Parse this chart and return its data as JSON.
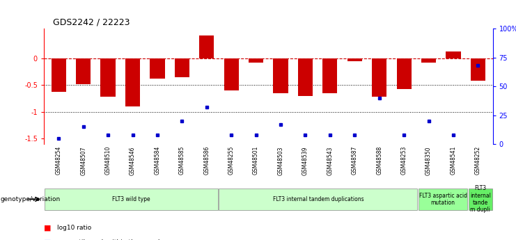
{
  "title": "GDS2242 / 22223",
  "samples": [
    "GSM48254",
    "GSM48507",
    "GSM48510",
    "GSM48546",
    "GSM48584",
    "GSM48585",
    "GSM48586",
    "GSM48255",
    "GSM48501",
    "GSM48503",
    "GSM48539",
    "GSM48543",
    "GSM48587",
    "GSM48588",
    "GSM48253",
    "GSM48350",
    "GSM48541",
    "GSM48252"
  ],
  "log10_ratio": [
    -0.62,
    -0.48,
    -0.72,
    -0.9,
    -0.38,
    -0.35,
    0.42,
    -0.6,
    -0.08,
    -0.65,
    -0.7,
    -0.65,
    -0.05,
    -0.72,
    -0.58,
    -0.08,
    0.13,
    -0.42
  ],
  "percentile_rank": [
    5,
    15,
    8,
    8,
    8,
    20,
    32,
    8,
    8,
    17,
    8,
    8,
    8,
    40,
    8,
    20,
    8,
    68
  ],
  "groups": [
    {
      "label": "FLT3 wild type",
      "start": 0,
      "end": 7,
      "color": "#ccffcc"
    },
    {
      "label": "FLT3 internal tandem duplications",
      "start": 7,
      "end": 15,
      "color": "#ccffcc"
    },
    {
      "label": "FLT3 aspartic acid\nmutation",
      "start": 15,
      "end": 17,
      "color": "#99ff99"
    },
    {
      "label": "FLT3\ninternal\ntande\nm dupli",
      "start": 17,
      "end": 18,
      "color": "#66ee66"
    }
  ],
  "bar_color": "#cc0000",
  "dot_color": "#0000cc",
  "dashed_line_color": "#cc0000",
  "ylim_left": [
    -1.6,
    0.55
  ],
  "ylim_right": [
    0,
    100
  ],
  "ylabel_right_ticks": [
    0,
    25,
    50,
    75,
    100
  ],
  "ylabel_right_labels": [
    "0",
    "25",
    "50",
    "75",
    "100%"
  ],
  "background_color": "#ffffff",
  "tick_label_fontsize": 6.5,
  "bar_width": 0.6
}
